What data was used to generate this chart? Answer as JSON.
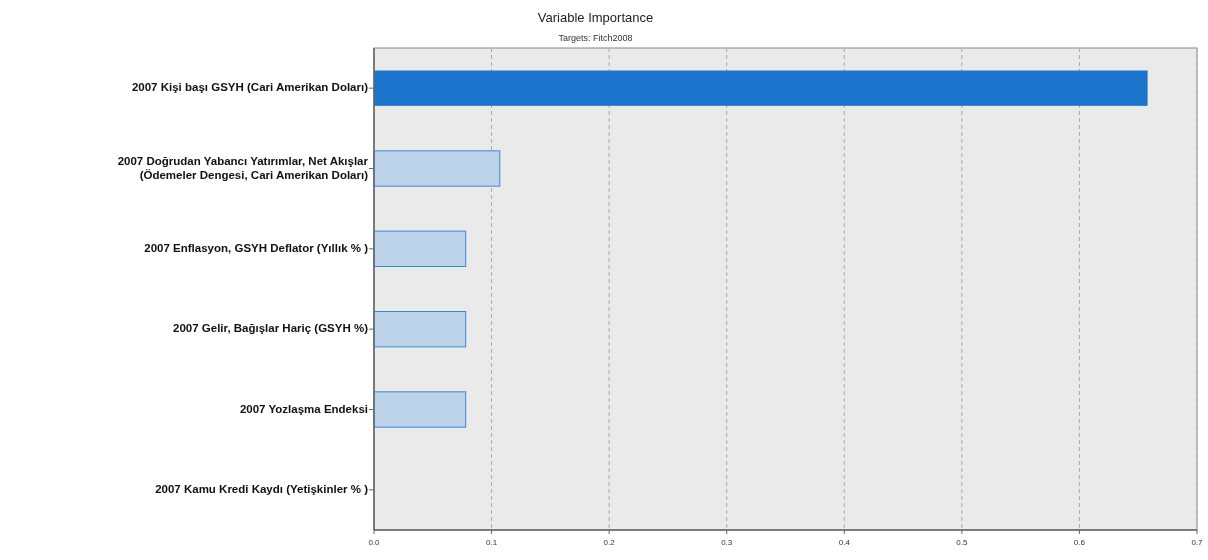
{
  "chart_data": {
    "type": "bar",
    "orientation": "horizontal",
    "title": "Variable Importance",
    "subtitle": "Targets: Fitch2008",
    "categories": [
      "2007 Kişi başı GSYH (Cari Amerikan Doları)",
      "2007 Doğrudan Yabancı Yatırımlar, Net Akışlar (Ödemeler Dengesi, Cari Amerikan Doları)",
      "2007 Enflasyon, GSYH Deflator (Yıllık % )",
      "2007 Gelir, Bağışlar Hariç (GSYH %)",
      "2007 Yozlaşma Endeksi",
      "2007 Kamu Kredi Kaydı (Yetişkinler % )"
    ],
    "values": [
      0.658,
      0.107,
      0.078,
      0.078,
      0.078,
      0
    ],
    "colors": [
      "#1b75cd",
      "#bcd2e8",
      "#bcd2e8",
      "#bcd2e8",
      "#bcd2e8",
      "#bcd2e8"
    ],
    "xlim": [
      0,
      0.7
    ],
    "xticks": [
      {
        "value": 0,
        "label": "0.0"
      },
      0.1,
      0.2,
      0.3,
      0.4,
      0.5,
      0.6,
      0.7
    ],
    "grid": "x",
    "line_style": "dashed"
  }
}
